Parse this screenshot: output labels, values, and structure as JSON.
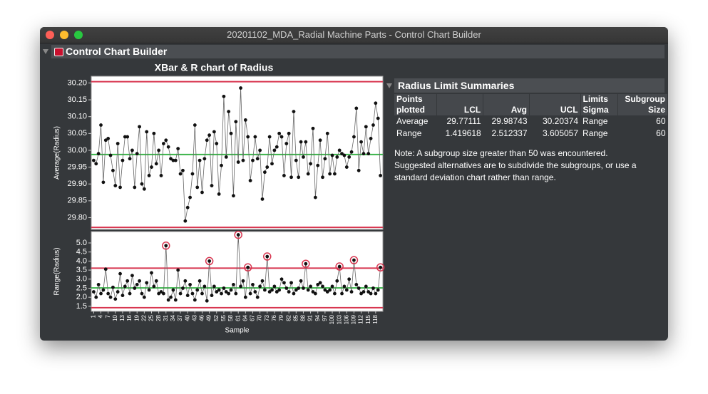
{
  "window": {
    "title": "20201102_MDA_Radial Machine Parts - Control Chart Builder"
  },
  "header": {
    "title": "Control Chart Builder"
  },
  "chart_panel_title": "XBar & R chart of Radius",
  "chart_data": [
    {
      "type": "line",
      "ylabel": "Average(Radius)",
      "x": [
        1,
        2,
        3,
        4,
        5,
        6,
        7,
        8,
        9,
        10,
        11,
        12,
        13,
        14,
        15,
        16,
        17,
        18,
        19,
        20,
        21,
        22,
        23,
        24,
        25,
        26,
        27,
        28,
        29,
        30,
        31,
        32,
        33,
        34,
        35,
        36,
        37,
        38,
        39,
        40,
        41,
        42,
        43,
        44,
        45,
        46,
        47,
        48,
        49,
        50,
        51,
        52,
        53,
        54,
        55,
        56,
        57,
        58,
        59,
        60,
        61,
        62,
        63,
        64,
        65,
        66,
        67,
        68,
        69,
        70,
        71,
        72,
        73,
        74,
        75,
        76,
        77,
        78,
        79,
        80,
        81,
        82,
        83,
        84,
        85,
        86,
        87,
        88,
        89,
        90,
        91,
        92,
        93,
        94,
        95,
        96,
        97,
        98,
        99,
        100,
        101,
        102,
        103,
        104,
        105,
        106,
        107,
        108,
        109,
        110,
        111,
        112,
        113,
        114,
        115,
        116,
        117,
        118,
        119,
        120
      ],
      "values": [
        29.97,
        29.96,
        29.99,
        30.075,
        29.905,
        30.03,
        30.035,
        29.985,
        29.94,
        29.895,
        30.02,
        29.89,
        29.97,
        30.04,
        30.04,
        29.975,
        30.0,
        29.89,
        29.99,
        30.07,
        29.9,
        29.885,
        30.055,
        29.925,
        29.95,
        30.05,
        29.96,
        30.0,
        29.925,
        30.02,
        30.03,
        30.01,
        29.975,
        29.97,
        29.97,
        30.005,
        29.93,
        29.94,
        29.79,
        29.83,
        29.86,
        29.93,
        30.075,
        29.89,
        29.97,
        29.875,
        29.975,
        30.03,
        30.045,
        29.895,
        30.055,
        30.02,
        29.87,
        29.955,
        30.16,
        29.98,
        30.115,
        30.05,
        29.865,
        30.085,
        29.965,
        30.185,
        29.97,
        30.09,
        30.04,
        29.91,
        29.97,
        30.04,
        29.975,
        30.0,
        29.855,
        29.935,
        29.95,
        30.04,
        29.96,
        30.0,
        30.01,
        30.05,
        30.04,
        29.925,
        30.02,
        30.05,
        29.92,
        30.115,
        29.97,
        29.92,
        30.025,
        29.98,
        30.025,
        29.93,
        29.96,
        30.065,
        29.86,
        29.955,
        30.03,
        29.92,
        29.975,
        30.05,
        29.93,
        29.985,
        29.93,
        29.98,
        30.0,
        29.99,
        29.985,
        29.95,
        29.98,
        29.995,
        30.04,
        30.125,
        29.94,
        30.025,
        29.99,
        30.07,
        29.99,
        30.035,
        30.075,
        30.14,
        30.095,
        29.925
      ],
      "xlim": [
        0,
        121
      ],
      "ylim": [
        29.765,
        30.22
      ],
      "yticks": [
        {
          "value": 29.8,
          "label": "29.80"
        },
        {
          "value": 29.85,
          "label": "29.85"
        },
        {
          "value": 29.9,
          "label": "29.90"
        },
        {
          "value": 29.95,
          "label": "29.95"
        },
        {
          "value": 30.0,
          "label": "30.00"
        },
        {
          "value": 30.05,
          "label": "30.05"
        },
        {
          "value": 30.1,
          "label": "30.10"
        },
        {
          "value": 30.15,
          "label": "30.15"
        },
        {
          "value": 30.2,
          "label": "30.20"
        }
      ]
    },
    {
      "type": "line",
      "ylabel": "Range(Radius)",
      "xlabel": "Sample",
      "x": [
        1,
        2,
        3,
        4,
        5,
        6,
        7,
        8,
        9,
        10,
        11,
        12,
        13,
        14,
        15,
        16,
        17,
        18,
        19,
        20,
        21,
        22,
        23,
        24,
        25,
        26,
        27,
        28,
        29,
        30,
        31,
        32,
        33,
        34,
        35,
        36,
        37,
        38,
        39,
        40,
        41,
        42,
        43,
        44,
        45,
        46,
        47,
        48,
        49,
        50,
        51,
        52,
        53,
        54,
        55,
        56,
        57,
        58,
        59,
        60,
        61,
        62,
        63,
        64,
        65,
        66,
        67,
        68,
        69,
        70,
        71,
        72,
        73,
        74,
        75,
        76,
        77,
        78,
        79,
        80,
        81,
        82,
        83,
        84,
        85,
        86,
        87,
        88,
        89,
        90,
        91,
        92,
        93,
        94,
        95,
        96,
        97,
        98,
        99,
        100,
        101,
        102,
        103,
        104,
        105,
        106,
        107,
        108,
        109,
        110,
        111,
        112,
        113,
        114,
        115,
        116,
        117,
        118,
        119,
        120
      ],
      "values": [
        2.3,
        2.0,
        2.7,
        2.2,
        2.4,
        3.55,
        2.2,
        2.0,
        2.55,
        1.9,
        2.3,
        3.3,
        2.1,
        2.6,
        2.9,
        2.2,
        3.2,
        2.5,
        2.7,
        2.9,
        2.2,
        2.0,
        2.8,
        2.4,
        3.35,
        2.6,
        2.9,
        2.2,
        2.3,
        2.2,
        4.85,
        1.85,
        2.0,
        2.4,
        1.85,
        3.5,
        2.2,
        2.5,
        2.9,
        2.1,
        2.7,
        2.2,
        1.85,
        2.4,
        2.9,
        2.2,
        2.6,
        1.8,
        4.0,
        2.1,
        2.6,
        2.3,
        2.4,
        2.2,
        2.5,
        2.3,
        2.2,
        2.4,
        2.7,
        2.2,
        5.45,
        2.6,
        2.9,
        2.0,
        3.65,
        2.2,
        2.7,
        2.3,
        2.0,
        2.6,
        2.9,
        2.4,
        4.25,
        2.3,
        2.4,
        2.6,
        2.3,
        2.4,
        3.0,
        2.8,
        2.5,
        2.3,
        2.8,
        2.2,
        2.4,
        2.5,
        2.9,
        2.5,
        3.85,
        2.4,
        2.6,
        2.3,
        2.2,
        2.7,
        2.8,
        2.6,
        2.4,
        2.3,
        2.4,
        2.6,
        2.2,
        2.9,
        3.7,
        2.2,
        2.6,
        2.4,
        3.0,
        2.3,
        4.05,
        2.7,
        2.5,
        2.2,
        2.3,
        2.6,
        2.3,
        2.2,
        2.5,
        2.2,
        2.4,
        3.65
      ],
      "xlim": [
        0,
        121
      ],
      "ylim": [
        1.22,
        5.63
      ],
      "xticks": [
        1,
        4,
        7,
        10,
        13,
        16,
        19,
        22,
        25,
        28,
        31,
        34,
        37,
        40,
        43,
        46,
        49,
        52,
        55,
        58,
        61,
        64,
        67,
        70,
        73,
        76,
        79,
        82,
        85,
        88,
        91,
        94,
        97,
        100,
        103,
        106,
        109,
        112,
        115,
        118
      ],
      "yticks": [
        1.5,
        {
          "value": 2.0,
          "label": "2.0"
        },
        2.5,
        {
          "value": 3.0,
          "label": "3.0"
        },
        3.5,
        {
          "value": 4.0,
          "label": "4.0"
        },
        4.5,
        {
          "value": 5.0,
          "label": "5.0"
        }
      ]
    }
  ],
  "summary": {
    "title": "Radius Limit Summaries",
    "columns": [
      "Points plotted",
      "LCL",
      "Avg",
      "UCL",
      "Limits Sigma",
      "Subgroup Size"
    ],
    "rows": [
      [
        "Average",
        29.77111,
        29.98743,
        30.20374,
        "Range",
        60
      ],
      [
        "Range",
        1.419618,
        2.512337,
        3.605057,
        "Range",
        60
      ]
    ],
    "note": "Note: A subgroup size greater than 50 was encountered. Suggested alternatives are to subdivide the subgroups, or use a standard deviation chart rather than range."
  }
}
